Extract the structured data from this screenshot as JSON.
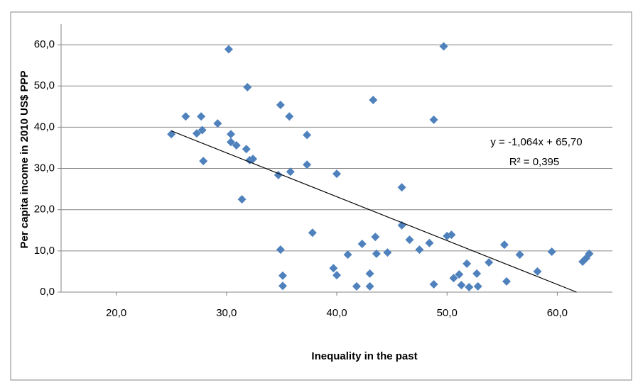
{
  "chart_data": {
    "type": "scatter",
    "x_label": "Inequality in the past",
    "y_label": "Per capita income in 2010  US$ PPP",
    "color": "#4f81bd",
    "grid": true,
    "xlim": [
      15,
      65
    ],
    "xticks": [
      {
        "value": 20,
        "label": "20,0"
      },
      {
        "value": 30,
        "label": "30,0"
      },
      {
        "value": 40,
        "label": "40,0"
      },
      {
        "value": 50,
        "label": "50,0"
      },
      {
        "value": 60,
        "label": "60,0"
      }
    ],
    "ylim": [
      0,
      65
    ],
    "yticks": [
      {
        "value": 0,
        "label": "0,0"
      },
      {
        "value": 10,
        "label": "10,0"
      },
      {
        "value": 20,
        "label": "20,0"
      },
      {
        "value": 30,
        "label": "30,0"
      },
      {
        "value": 40,
        "label": "40,0"
      },
      {
        "value": 50,
        "label": "50,0"
      },
      {
        "value": 60,
        "label": "60,0"
      }
    ],
    "x": [
      25.0,
      26.3,
      27.3,
      27.7,
      27.8,
      27.9,
      29.2,
      30.2,
      30.4,
      30.4,
      30.9,
      31.4,
      31.9,
      31.8,
      32.1,
      32.4,
      34.7,
      34.9,
      35.7,
      34.9,
      35.1,
      35.1,
      35.8,
      37.3,
      37.3,
      37.8,
      39.7,
      40.0,
      40.0,
      41.0,
      41.8,
      42.3,
      43.0,
      43.0,
      43.3,
      43.5,
      43.6,
      44.6,
      45.9,
      45.9,
      46.6,
      47.5,
      48.4,
      48.8,
      48.8,
      49.7,
      50.0,
      50.4,
      50.6,
      51.1,
      51.3,
      51.8,
      52.0,
      52.7,
      52.8,
      53.8,
      55.2,
      55.4,
      56.6,
      58.2,
      59.5,
      62.3,
      62.6,
      62.9
    ],
    "values": [
      38.3,
      42.6,
      38.5,
      42.6,
      39.3,
      31.8,
      40.9,
      58.9,
      38.3,
      36.4,
      35.6,
      22.5,
      49.7,
      34.7,
      32.0,
      32.3,
      28.4,
      45.4,
      42.6,
      10.3,
      4.0,
      1.5,
      29.2,
      38.1,
      30.9,
      14.4,
      5.8,
      4.1,
      28.7,
      9.1,
      1.4,
      11.7,
      1.4,
      4.5,
      46.6,
      13.4,
      9.3,
      9.6,
      25.4,
      16.2,
      12.7,
      10.3,
      11.9,
      1.9,
      41.8,
      59.6,
      13.6,
      13.9,
      3.4,
      4.3,
      1.7,
      6.9,
      1.2,
      4.5,
      1.4,
      7.2,
      11.5,
      2.6,
      9.1,
      5.0,
      9.8,
      7.4,
      8.2,
      9.3
    ],
    "trendline": {
      "equation": "y = -1,064x + 65,70",
      "r2": "R² = 0,395",
      "slope": -1.064,
      "intercept": 65.7,
      "color": "#000000"
    }
  }
}
